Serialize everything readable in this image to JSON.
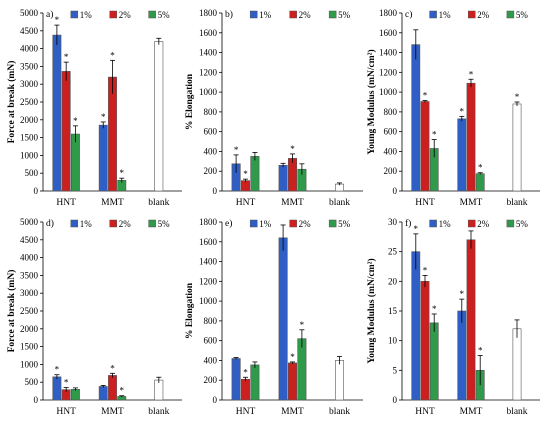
{
  "chart_data": [
    {
      "type": "bar",
      "panel_label": "a)",
      "categories": [
        "HNT",
        "MMT",
        "blank"
      ],
      "series": [
        {
          "name": "1%",
          "values": [
            4380,
            1850,
            null
          ],
          "errors": [
            280,
            90,
            null
          ],
          "stars": [
            true,
            true,
            false
          ]
        },
        {
          "name": "2%",
          "values": [
            3360,
            3200,
            null
          ],
          "errors": [
            260,
            470,
            null
          ],
          "stars": [
            true,
            true,
            false
          ]
        },
        {
          "name": "5%",
          "values": [
            1600,
            300,
            null
          ],
          "errors": [
            230,
            60,
            null
          ],
          "stars": [
            true,
            true,
            false
          ]
        }
      ],
      "blank": {
        "value": 4200,
        "error": 90,
        "star": false
      },
      "ylabel": "Force at break (mN)",
      "ylim": [
        0,
        5000
      ],
      "yticks": [
        "0",
        "500",
        "1000",
        "1500",
        "2000",
        "2500",
        "3000",
        "3500",
        "4000",
        "4500",
        "5000"
      ],
      "legend": "top"
    },
    {
      "type": "bar",
      "panel_label": "b)",
      "categories": [
        "HNT",
        "MMT",
        "blank"
      ],
      "series": [
        {
          "name": "1%",
          "values": [
            275,
            260,
            null
          ],
          "errors": [
            90,
            20,
            null
          ],
          "stars": [
            true,
            false,
            false
          ]
        },
        {
          "name": "2%",
          "values": [
            105,
            330,
            null
          ],
          "errors": [
            15,
            45,
            null
          ],
          "stars": [
            true,
            true,
            false
          ]
        },
        {
          "name": "5%",
          "values": [
            350,
            220,
            null
          ],
          "errors": [
            40,
            55,
            null
          ],
          "stars": [
            false,
            false,
            false
          ]
        }
      ],
      "blank": {
        "value": 70,
        "error": 12,
        "star": false
      },
      "ylabel": "% Elongation",
      "ylim": [
        0,
        1800
      ],
      "yticks": [
        "0",
        "200",
        "400",
        "600",
        "800",
        "1000",
        "1200",
        "1400",
        "1600",
        "1800"
      ],
      "legend": "top"
    },
    {
      "type": "bar",
      "panel_label": "c)",
      "categories": [
        "HNT",
        "MMT",
        "blank"
      ],
      "series": [
        {
          "name": "1%",
          "values": [
            1480,
            730,
            null
          ],
          "errors": [
            150,
            25,
            null
          ],
          "stars": [
            false,
            true,
            false
          ]
        },
        {
          "name": "2%",
          "values": [
            905,
            1090,
            null
          ],
          "errors": [
            10,
            40,
            null
          ],
          "stars": [
            true,
            true,
            false
          ]
        },
        {
          "name": "5%",
          "values": [
            430,
            175,
            null
          ],
          "errors": [
            90,
            10,
            null
          ],
          "stars": [
            true,
            true,
            false
          ]
        }
      ],
      "blank": {
        "value": 880,
        "error": 20,
        "star": true
      },
      "ylabel": "Young Modulus (mN/cm²)",
      "ylim": [
        0,
        1800
      ],
      "yticks": [
        "0",
        "200",
        "400",
        "600",
        "800",
        "1000",
        "1200",
        "1400",
        "1600",
        "1800"
      ],
      "legend": "top"
    },
    {
      "type": "bar",
      "panel_label": "d)",
      "categories": [
        "HNT",
        "MMT",
        "blank"
      ],
      "series": [
        {
          "name": "1%",
          "values": [
            650,
            380,
            null
          ],
          "errors": [
            60,
            30,
            null
          ],
          "stars": [
            true,
            false,
            false
          ]
        },
        {
          "name": "2%",
          "values": [
            290,
            690,
            null
          ],
          "errors": [
            60,
            60,
            null
          ],
          "stars": [
            true,
            true,
            false
          ]
        },
        {
          "name": "5%",
          "values": [
            300,
            100,
            null
          ],
          "errors": [
            40,
            20,
            null
          ],
          "stars": [
            false,
            true,
            false
          ]
        }
      ],
      "blank": {
        "value": 560,
        "error": 80,
        "star": false
      },
      "ylabel": "Force at break (mN)",
      "ylim": [
        0,
        5000
      ],
      "yticks": [
        "0",
        "500",
        "1000",
        "1500",
        "2000",
        "2500",
        "3000",
        "3500",
        "4000",
        "4500",
        "5000"
      ],
      "legend": "top"
    },
    {
      "type": "bar",
      "panel_label": "e)",
      "categories": [
        "HNT",
        "MMT",
        "blank"
      ],
      "series": [
        {
          "name": "1%",
          "values": [
            420,
            1640,
            null
          ],
          "errors": [
            10,
            130,
            null
          ],
          "stars": [
            false,
            false,
            false
          ]
        },
        {
          "name": "2%",
          "values": [
            210,
            375,
            null
          ],
          "errors": [
            20,
            10,
            null
          ],
          "stars": [
            true,
            true,
            false
          ]
        },
        {
          "name": "5%",
          "values": [
            355,
            620,
            null
          ],
          "errors": [
            30,
            90,
            null
          ],
          "stars": [
            false,
            true,
            false
          ]
        }
      ],
      "blank": {
        "value": 400,
        "error": 40,
        "star": false
      },
      "ylabel": "% Elongation",
      "ylim": [
        0,
        1800
      ],
      "yticks": [
        "0",
        "200",
        "400",
        "600",
        "800",
        "1000",
        "1200",
        "1400",
        "1600",
        "1800"
      ],
      "legend": "top"
    },
    {
      "type": "bar",
      "panel_label": "f)",
      "categories": [
        "HNT",
        "MMT",
        "blank"
      ],
      "series": [
        {
          "name": "1%",
          "values": [
            25,
            15,
            null
          ],
          "errors": [
            3,
            2,
            null
          ],
          "stars": [
            true,
            true,
            false
          ]
        },
        {
          "name": "2%",
          "values": [
            20,
            27,
            null
          ],
          "errors": [
            1,
            1.5,
            null
          ],
          "stars": [
            true,
            false,
            false
          ]
        },
        {
          "name": "5%",
          "values": [
            13,
            5,
            null
          ],
          "errors": [
            1.5,
            2.5,
            null
          ],
          "stars": [
            true,
            true,
            false
          ]
        }
      ],
      "blank": {
        "value": 12,
        "error": 1.5,
        "star": false
      },
      "ylabel": "Young Modulus (mN/cm²)",
      "ylim": [
        0,
        30
      ],
      "yticks": [
        "0",
        "5",
        "10",
        "15",
        "20",
        "25",
        "30"
      ],
      "legend": "top"
    }
  ],
  "colors": {
    "1%": "#2f5fc4",
    "2%": "#cc1f1f",
    "5%": "#2e9a4a",
    "blank": "#ffffff",
    "bar_edge": "#555555"
  }
}
